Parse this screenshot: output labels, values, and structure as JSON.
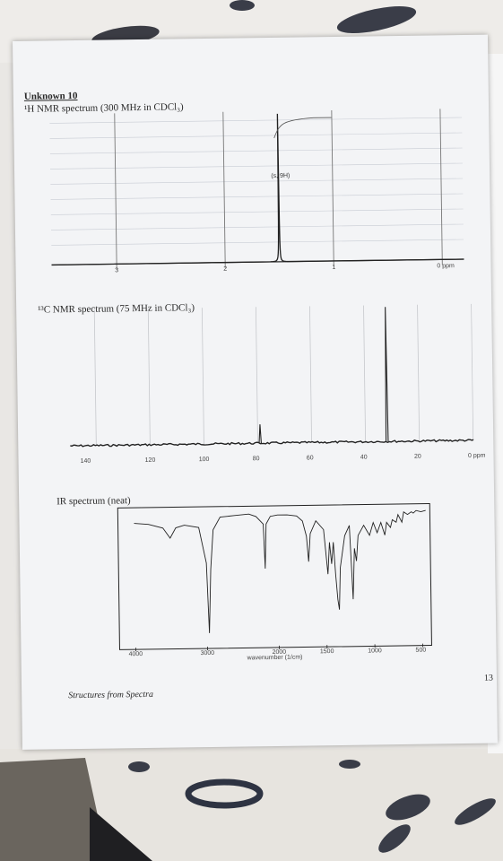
{
  "page": {
    "title": "Unknown 10",
    "footer": "Structures from Spectra",
    "page_number": "13"
  },
  "chart_data": [
    {
      "type": "line",
      "title": "¹H NMR spectrum (300 MHz in CDCl₃)",
      "x_ticks": [
        "3",
        "2",
        "1",
        "0 ppm"
      ],
      "xlim": [
        3.6,
        -0.2
      ],
      "peaks": [
        {
          "x": 1.5,
          "height": 1.0,
          "label": "(s, 9H)"
        }
      ],
      "integral": true,
      "grid": true
    },
    {
      "type": "line",
      "title": "¹³C NMR spectrum (75 MHz in CDCl₃)",
      "x_ticks": [
        "140",
        "120",
        "100",
        "80",
        "60",
        "40",
        "20",
        "0 ppm"
      ],
      "xlim": [
        150,
        -5
      ],
      "peaks": [
        {
          "x": 77,
          "height": 0.14
        },
        {
          "x": 31,
          "height": 1.0
        }
      ],
      "grid": true
    },
    {
      "type": "line",
      "title": "IR spectrum (neat)",
      "xlabel": "wavenumber (1/cm)",
      "x_ticks": [
        "4000",
        "3000",
        "2000",
        "1500",
        "1000",
        "500"
      ],
      "ylim": [
        0,
        100
      ],
      "points": [
        [
          4000,
          92
        ],
        [
          3800,
          91
        ],
        [
          3600,
          88
        ],
        [
          3500,
          80
        ],
        [
          3420,
          88
        ],
        [
          3300,
          90
        ],
        [
          3100,
          88
        ],
        [
          3000,
          60
        ],
        [
          2970,
          5
        ],
        [
          2940,
          55
        ],
        [
          2900,
          86
        ],
        [
          2800,
          96
        ],
        [
          2600,
          97
        ],
        [
          2400,
          98
        ],
        [
          2300,
          96
        ],
        [
          2200,
          90
        ],
        [
          2180,
          55
        ],
        [
          2160,
          90
        ],
        [
          2100,
          96
        ],
        [
          2000,
          97
        ],
        [
          1900,
          97
        ],
        [
          1800,
          96
        ],
        [
          1740,
          92
        ],
        [
          1700,
          80
        ],
        [
          1680,
          60
        ],
        [
          1660,
          82
        ],
        [
          1600,
          92
        ],
        [
          1520,
          85
        ],
        [
          1480,
          50
        ],
        [
          1460,
          75
        ],
        [
          1440,
          58
        ],
        [
          1420,
          75
        ],
        [
          1400,
          50
        ],
        [
          1380,
          30
        ],
        [
          1365,
          22
        ],
        [
          1350,
          55
        ],
        [
          1300,
          80
        ],
        [
          1250,
          88
        ],
        [
          1220,
          30
        ],
        [
          1200,
          70
        ],
        [
          1180,
          60
        ],
        [
          1160,
          80
        ],
        [
          1100,
          88
        ],
        [
          1040,
          80
        ],
        [
          1000,
          90
        ],
        [
          960,
          82
        ],
        [
          920,
          90
        ],
        [
          880,
          80
        ],
        [
          860,
          90
        ],
        [
          820,
          86
        ],
        [
          800,
          92
        ],
        [
          760,
          90
        ],
        [
          740,
          96
        ],
        [
          700,
          90
        ],
        [
          680,
          98
        ],
        [
          640,
          96
        ],
        [
          600,
          98
        ],
        [
          580,
          97
        ],
        [
          550,
          99
        ],
        [
          500,
          98
        ],
        [
          450,
          99
        ]
      ]
    }
  ]
}
